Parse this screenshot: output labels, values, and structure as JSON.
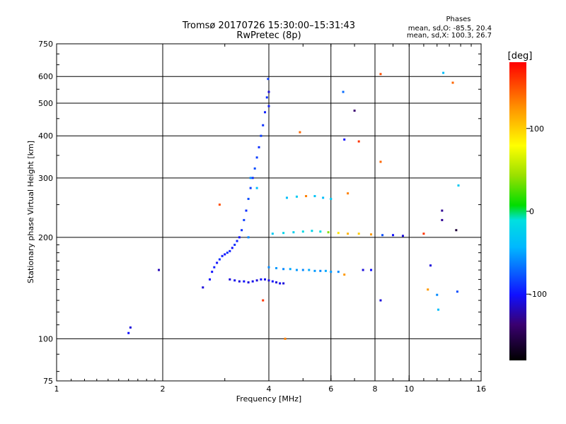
{
  "chart_data": {
    "type": "scatter",
    "title": "Tromsø 20170726 15:30:00–15:31:43",
    "subtitle": "RwPretec (8p)",
    "xlabel": "Frequency [MHz]",
    "ylabel": "Stationary phase Virtual Height [km]",
    "x_scale": "log",
    "y_scale": "log",
    "xlim": [
      1,
      16
    ],
    "ylim": [
      75,
      750
    ],
    "x_ticks": [
      1,
      2,
      4,
      6,
      8,
      10,
      16
    ],
    "x_tick_labels": [
      "1",
      "2",
      "4",
      "6",
      "8",
      "10",
      "16"
    ],
    "y_ticks": [
      75,
      100,
      200,
      300,
      400,
      500,
      600,
      750
    ],
    "y_tick_labels": [
      "75",
      "100",
      "200",
      "300",
      "400",
      "500",
      "600",
      "750"
    ],
    "grid": true,
    "stats": {
      "header": "Phases",
      "line1": "mean, sd,O: -85.5, 20.4",
      "line2": "mean, sd,X: 100.3, 26.7"
    },
    "colorbar": {
      "label": "[deg]",
      "range": [
        -180,
        180
      ],
      "ticks": [
        100,
        0,
        -100
      ],
      "tick_labels": [
        "100",
        "0",
        "-100"
      ]
    },
    "series_trace_O": [
      {
        "f": 2.72,
        "h": 150,
        "p": -100
      },
      {
        "f": 2.76,
        "h": 158,
        "p": -100
      },
      {
        "f": 2.8,
        "h": 163,
        "p": -95
      },
      {
        "f": 2.85,
        "h": 168,
        "p": -100
      },
      {
        "f": 2.9,
        "h": 172,
        "p": -90
      },
      {
        "f": 2.95,
        "h": 176,
        "p": -95
      },
      {
        "f": 3.0,
        "h": 178,
        "p": -100
      },
      {
        "f": 3.05,
        "h": 180,
        "p": -90
      },
      {
        "f": 3.1,
        "h": 182,
        "p": -95
      },
      {
        "f": 3.15,
        "h": 186,
        "p": -100
      },
      {
        "f": 3.2,
        "h": 190,
        "p": -90
      },
      {
        "f": 3.25,
        "h": 195,
        "p": -95
      },
      {
        "f": 3.3,
        "h": 200,
        "p": -100
      },
      {
        "f": 3.35,
        "h": 210,
        "p": -90
      },
      {
        "f": 3.4,
        "h": 225,
        "p": -85
      },
      {
        "f": 3.45,
        "h": 240,
        "p": -90
      },
      {
        "f": 3.5,
        "h": 260,
        "p": -80
      },
      {
        "f": 3.55,
        "h": 280,
        "p": -85
      },
      {
        "f": 3.6,
        "h": 300,
        "p": -90
      },
      {
        "f": 3.65,
        "h": 320,
        "p": -80
      },
      {
        "f": 3.7,
        "h": 345,
        "p": -85
      },
      {
        "f": 3.75,
        "h": 370,
        "p": -90
      },
      {
        "f": 3.8,
        "h": 400,
        "p": -85
      },
      {
        "f": 3.85,
        "h": 430,
        "p": -90
      },
      {
        "f": 3.9,
        "h": 470,
        "p": -95
      },
      {
        "f": 3.95,
        "h": 520,
        "p": -90
      },
      {
        "f": 3.98,
        "h": 590,
        "p": -85
      }
    ],
    "series_lower_E": [
      {
        "f": 3.1,
        "h": 150,
        "p": -110
      },
      {
        "f": 3.2,
        "h": 149,
        "p": -105
      },
      {
        "f": 3.3,
        "h": 148,
        "p": -110
      },
      {
        "f": 3.4,
        "h": 148,
        "p": -100
      },
      {
        "f": 3.5,
        "h": 147,
        "p": -110
      },
      {
        "f": 3.6,
        "h": 148,
        "p": -105
      },
      {
        "f": 3.7,
        "h": 149,
        "p": -110
      },
      {
        "f": 3.8,
        "h": 150,
        "p": -100
      },
      {
        "f": 3.9,
        "h": 150,
        "p": -105
      },
      {
        "f": 4.0,
        "h": 149,
        "p": -110
      },
      {
        "f": 4.1,
        "h": 148,
        "p": -100
      },
      {
        "f": 4.2,
        "h": 147,
        "p": -110
      },
      {
        "f": 4.3,
        "h": 146,
        "p": -105
      },
      {
        "f": 4.4,
        "h": 146,
        "p": -110
      }
    ],
    "series_band_160": [
      {
        "f": 4.0,
        "h": 163,
        "p": -60
      },
      {
        "f": 4.2,
        "h": 162,
        "p": -55
      },
      {
        "f": 4.4,
        "h": 161,
        "p": -60
      },
      {
        "f": 4.6,
        "h": 161,
        "p": -50
      },
      {
        "f": 4.8,
        "h": 160,
        "p": -55
      },
      {
        "f": 5.0,
        "h": 160,
        "p": -60
      },
      {
        "f": 5.2,
        "h": 160,
        "p": -50
      },
      {
        "f": 5.4,
        "h": 159,
        "p": -55
      },
      {
        "f": 5.6,
        "h": 159,
        "p": -60
      },
      {
        "f": 5.8,
        "h": 159,
        "p": -50
      },
      {
        "f": 6.0,
        "h": 158,
        "p": -55
      },
      {
        "f": 6.3,
        "h": 158,
        "p": -60
      }
    ],
    "series_band_205": [
      {
        "f": 4.1,
        "h": 205,
        "p": -30
      },
      {
        "f": 4.4,
        "h": 206,
        "p": -20
      },
      {
        "f": 4.7,
        "h": 207,
        "p": -25
      },
      {
        "f": 5.0,
        "h": 208,
        "p": -15
      },
      {
        "f": 5.3,
        "h": 209,
        "p": -20
      },
      {
        "f": 5.6,
        "h": 208,
        "p": -10
      },
      {
        "f": 5.9,
        "h": 207,
        "p": 40
      },
      {
        "f": 6.3,
        "h": 206,
        "p": 90
      },
      {
        "f": 6.7,
        "h": 205,
        "p": 110
      },
      {
        "f": 7.2,
        "h": 205,
        "p": 100
      },
      {
        "f": 7.8,
        "h": 204,
        "p": 120
      },
      {
        "f": 8.4,
        "h": 203,
        "p": -80
      },
      {
        "f": 9.0,
        "h": 203,
        "p": -100
      },
      {
        "f": 9.6,
        "h": 202,
        "p": -110
      }
    ],
    "series_band_265": [
      {
        "f": 4.5,
        "h": 262,
        "p": -40
      },
      {
        "f": 4.8,
        "h": 264,
        "p": -30
      },
      {
        "f": 5.1,
        "h": 265,
        "p": 130
      },
      {
        "f": 5.4,
        "h": 265,
        "p": -35
      },
      {
        "f": 5.7,
        "h": 262,
        "p": -40
      },
      {
        "f": 6.0,
        "h": 260,
        "p": -30
      }
    ],
    "series_scatter": [
      {
        "f": 1.62,
        "h": 108,
        "p": -110
      },
      {
        "f": 1.6,
        "h": 104,
        "p": -100
      },
      {
        "f": 1.95,
        "h": 160,
        "p": -120
      },
      {
        "f": 2.6,
        "h": 142,
        "p": -110
      },
      {
        "f": 2.9,
        "h": 250,
        "p": 150
      },
      {
        "f": 3.55,
        "h": 300,
        "p": -60
      },
      {
        "f": 3.7,
        "h": 280,
        "p": -40
      },
      {
        "f": 3.5,
        "h": 200,
        "p": -60
      },
      {
        "f": 3.85,
        "h": 130,
        "p": 160
      },
      {
        "f": 4.0,
        "h": 540,
        "p": -110
      },
      {
        "f": 4.0,
        "h": 490,
        "p": -95
      },
      {
        "f": 4.45,
        "h": 100,
        "p": 130
      },
      {
        "f": 4.9,
        "h": 410,
        "p": 140
      },
      {
        "f": 6.5,
        "h": 540,
        "p": -70
      },
      {
        "f": 6.55,
        "h": 390,
        "p": -100
      },
      {
        "f": 6.55,
        "h": 155,
        "p": 120
      },
      {
        "f": 6.7,
        "h": 270,
        "p": 130
      },
      {
        "f": 7.0,
        "h": 475,
        "p": -140
      },
      {
        "f": 7.2,
        "h": 385,
        "p": 160
      },
      {
        "f": 7.4,
        "h": 160,
        "p": -110
      },
      {
        "f": 7.8,
        "h": 160,
        "p": -100
      },
      {
        "f": 8.3,
        "h": 335,
        "p": 140
      },
      {
        "f": 8.3,
        "h": 130,
        "p": -110
      },
      {
        "f": 8.3,
        "h": 610,
        "p": 150
      },
      {
        "f": 11.0,
        "h": 205,
        "p": 160
      },
      {
        "f": 11.5,
        "h": 165,
        "p": -110
      },
      {
        "f": 11.3,
        "h": 140,
        "p": 120
      },
      {
        "f": 12.0,
        "h": 135,
        "p": -60
      },
      {
        "f": 12.1,
        "h": 122,
        "p": -40
      },
      {
        "f": 12.4,
        "h": 240,
        "p": -130
      },
      {
        "f": 12.4,
        "h": 225,
        "p": -130
      },
      {
        "f": 12.5,
        "h": 615,
        "p": -40
      },
      {
        "f": 13.3,
        "h": 575,
        "p": 140
      },
      {
        "f": 13.6,
        "h": 210,
        "p": -160
      },
      {
        "f": 13.8,
        "h": 285,
        "p": -30
      },
      {
        "f": 13.7,
        "h": 138,
        "p": -80
      }
    ]
  }
}
